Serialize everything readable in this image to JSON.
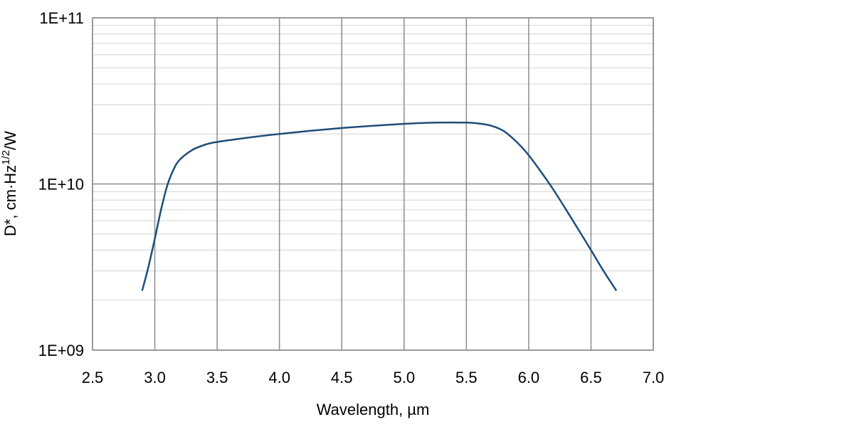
{
  "chart_data": {
    "type": "line",
    "title": "",
    "xlabel": "Wavelength, µm",
    "ylabel": {
      "main": "D*, cm·Hz",
      "superscript": "1/2",
      "suffix": "/W"
    },
    "xlim": [
      2.5,
      7.0
    ],
    "ylim": [
      1000000000.0,
      100000000000.0
    ],
    "yscale": "log",
    "grid": "on",
    "x_tick_labels": [
      "2.5",
      "3.0",
      "3.5",
      "4.0",
      "4.5",
      "5.0",
      "5.5",
      "6.0",
      "6.5",
      "7.0"
    ],
    "y_tick_labels": [
      "1E+09",
      "1E+10",
      "1E+11"
    ],
    "series": [
      {
        "color": "#1f4e79",
        "x": [
          2.9,
          2.95,
          3.0,
          3.05,
          3.1,
          3.15,
          3.2,
          3.3,
          3.4,
          3.5,
          3.75,
          4.0,
          4.25,
          4.5,
          4.75,
          5.0,
          5.25,
          5.5,
          5.6,
          5.7,
          5.8,
          5.9,
          6.0,
          6.1,
          6.2,
          6.3,
          6.4,
          6.5,
          6.6,
          6.7
        ],
        "y": [
          2300000000.0,
          3200000000.0,
          4700000000.0,
          7000000000.0,
          9800000000.0,
          12200000000.0,
          14000000000.0,
          16000000000.0,
          17200000000.0,
          17900000000.0,
          19000000000.0,
          20000000000.0,
          20900000000.0,
          21700000000.0,
          22400000000.0,
          23000000000.0,
          23400000000.0,
          23400000000.0,
          23100000000.0,
          22400000000.0,
          20800000000.0,
          18000000000.0,
          14900000000.0,
          11800000000.0,
          9200000000.0,
          7000000000.0,
          5300000000.0,
          4000000000.0,
          3000000000.0,
          2300000000.0
        ]
      }
    ]
  }
}
